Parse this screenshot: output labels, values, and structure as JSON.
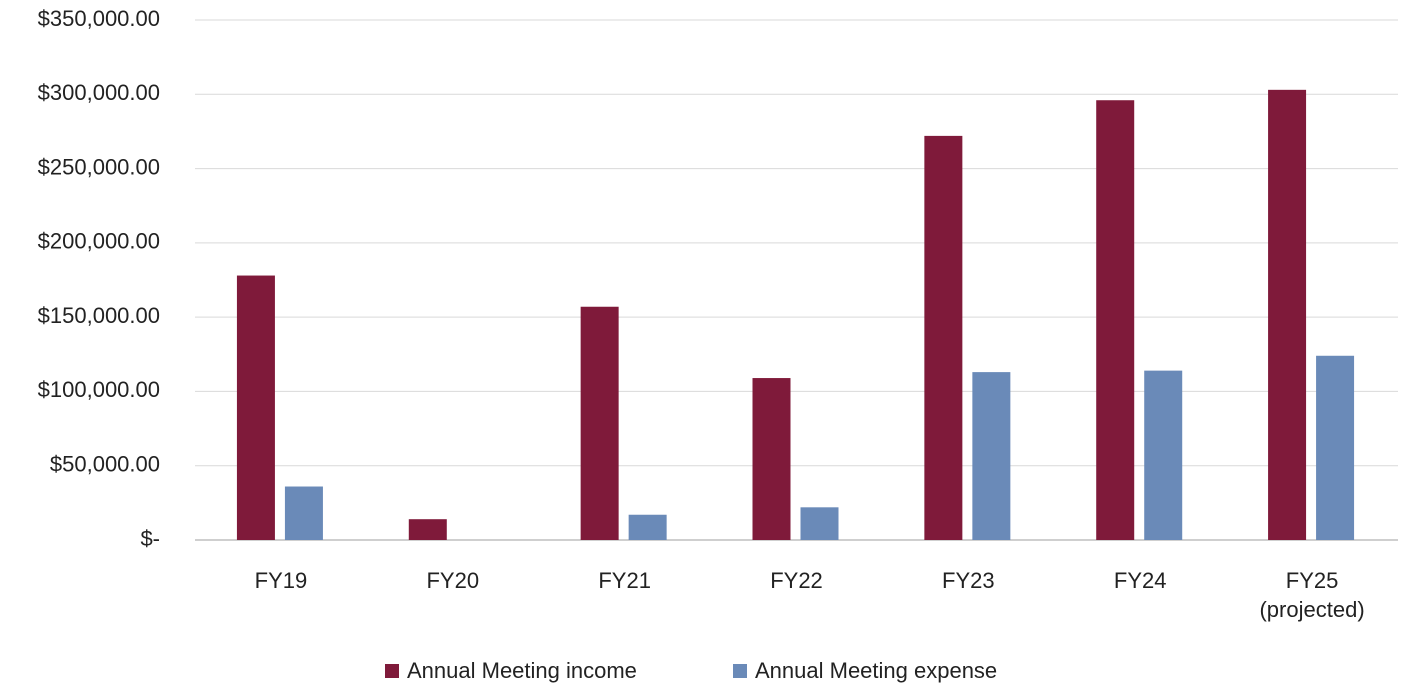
{
  "chart_data": {
    "type": "bar",
    "categories": [
      "FY19",
      "FY20",
      "FY21",
      "FY22",
      "FY23",
      "FY24",
      "FY25 (projected)"
    ],
    "series": [
      {
        "name": "Annual Meeting income",
        "color": "#7f1a3a",
        "values": [
          178000,
          14000,
          157000,
          109000,
          272000,
          296000,
          303000
        ]
      },
      {
        "name": "Annual Meeting expense",
        "color": "#6a8ab8",
        "values": [
          36000,
          0,
          17000,
          22000,
          113000,
          114000,
          124000
        ]
      }
    ],
    "ylim": [
      0,
      350000
    ],
    "yticks": [
      {
        "value": 0,
        "label": "$-"
      },
      {
        "value": 50000,
        "label": "$50,000.00"
      },
      {
        "value": 100000,
        "label": "$100,000.00"
      },
      {
        "value": 150000,
        "label": "$150,000.00"
      },
      {
        "value": 200000,
        "label": "$200,000.00"
      },
      {
        "value": 250000,
        "label": "$250,000.00"
      },
      {
        "value": 300000,
        "label": "$300,000.00"
      },
      {
        "value": 350000,
        "label": "$350,000.00"
      }
    ],
    "grid": true,
    "legend": "bottom"
  }
}
